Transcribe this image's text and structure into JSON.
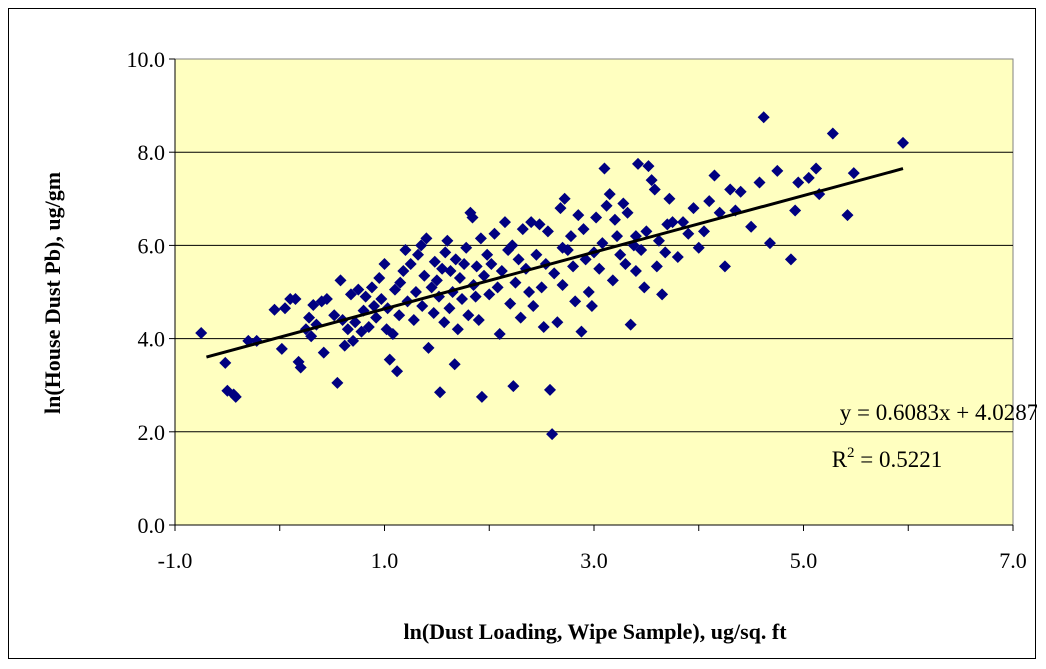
{
  "chart_data": {
    "type": "scatter",
    "xlabel": "ln(Dust Loading, Wipe Sample), ug/sq. ft",
    "ylabel": "ln(House Dust Pb), ug/gm",
    "xlim": [
      -1.0,
      7.0
    ],
    "ylim": [
      0.0,
      10.0
    ],
    "x_ticks": [
      "-1.0",
      "1.0",
      "3.0",
      "5.0",
      "7.0"
    ],
    "y_ticks": [
      "0.0",
      "2.0",
      "4.0",
      "6.0",
      "8.0",
      "10.0"
    ],
    "grid": "horizontal major gridlines",
    "legend": "none",
    "colors": {
      "plot_background": "#FFFFC0",
      "marker": "#000080",
      "trendline": "#000000",
      "gridline": "#000000"
    },
    "marker_shape": "diamond",
    "trendline": {
      "type": "linear",
      "slope": 0.6083,
      "intercept": 4.0287,
      "x_range": [
        -0.7,
        5.95
      ],
      "equation_text": "y = 0.6083x + 4.0287",
      "r2_prefix": "R",
      "r2_sup": "2",
      "r2_suffix": " = 0.5221"
    },
    "points": [
      [
        -0.75,
        4.12
      ],
      [
        -0.52,
        3.48
      ],
      [
        -0.5,
        2.88
      ],
      [
        -0.44,
        2.8
      ],
      [
        -0.42,
        2.75
      ],
      [
        -0.3,
        3.95
      ],
      [
        -0.22,
        3.95
      ],
      [
        -0.05,
        4.62
      ],
      [
        0.02,
        3.78
      ],
      [
        0.05,
        4.65
      ],
      [
        0.1,
        4.85
      ],
      [
        0.15,
        4.85
      ],
      [
        0.18,
        3.5
      ],
      [
        0.2,
        3.38
      ],
      [
        0.25,
        4.2
      ],
      [
        0.28,
        4.45
      ],
      [
        0.3,
        4.05
      ],
      [
        0.32,
        4.72
      ],
      [
        0.35,
        4.3
      ],
      [
        0.4,
        4.8
      ],
      [
        0.42,
        3.7
      ],
      [
        0.45,
        4.85
      ],
      [
        0.52,
        4.5
      ],
      [
        0.55,
        3.05
      ],
      [
        0.58,
        5.25
      ],
      [
        0.6,
        4.4
      ],
      [
        0.62,
        3.85
      ],
      [
        0.65,
        4.2
      ],
      [
        0.68,
        4.95
      ],
      [
        0.7,
        3.95
      ],
      [
        0.72,
        4.35
      ],
      [
        0.75,
        5.05
      ],
      [
        0.78,
        4.15
      ],
      [
        0.8,
        4.6
      ],
      [
        0.82,
        4.9
      ],
      [
        0.85,
        4.25
      ],
      [
        0.88,
        5.1
      ],
      [
        0.9,
        4.7
      ],
      [
        0.92,
        4.45
      ],
      [
        0.95,
        5.3
      ],
      [
        0.97,
        4.85
      ],
      [
        1.0,
        5.6
      ],
      [
        1.02,
        4.2
      ],
      [
        1.03,
        4.65
      ],
      [
        1.05,
        3.55
      ],
      [
        1.08,
        4.1
      ],
      [
        1.1,
        5.05
      ],
      [
        1.12,
        3.3
      ],
      [
        1.14,
        4.5
      ],
      [
        1.15,
        5.2
      ],
      [
        1.18,
        5.45
      ],
      [
        1.2,
        5.9
      ],
      [
        1.22,
        4.8
      ],
      [
        1.25,
        5.6
      ],
      [
        1.28,
        4.4
      ],
      [
        1.3,
        5.0
      ],
      [
        1.32,
        5.8
      ],
      [
        1.35,
        6.0
      ],
      [
        1.36,
        4.7
      ],
      [
        1.38,
        5.35
      ],
      [
        1.4,
        6.15
      ],
      [
        1.42,
        3.8
      ],
      [
        1.45,
        5.1
      ],
      [
        1.47,
        4.55
      ],
      [
        1.48,
        5.65
      ],
      [
        1.5,
        5.25
      ],
      [
        1.52,
        4.9
      ],
      [
        1.53,
        2.85
      ],
      [
        1.55,
        5.5
      ],
      [
        1.57,
        4.35
      ],
      [
        1.58,
        5.85
      ],
      [
        1.6,
        6.1
      ],
      [
        1.62,
        4.65
      ],
      [
        1.63,
        5.45
      ],
      [
        1.65,
        5.0
      ],
      [
        1.67,
        3.45
      ],
      [
        1.68,
        5.7
      ],
      [
        1.7,
        4.2
      ],
      [
        1.72,
        5.3
      ],
      [
        1.74,
        4.85
      ],
      [
        1.76,
        5.6
      ],
      [
        1.78,
        5.95
      ],
      [
        1.8,
        4.5
      ],
      [
        1.82,
        6.7
      ],
      [
        1.84,
        6.6
      ],
      [
        1.85,
        5.15
      ],
      [
        1.87,
        4.9
      ],
      [
        1.88,
        5.55
      ],
      [
        1.9,
        4.4
      ],
      [
        1.92,
        6.15
      ],
      [
        1.93,
        2.75
      ],
      [
        1.95,
        5.35
      ],
      [
        1.98,
        5.8
      ],
      [
        2.0,
        4.95
      ],
      [
        2.02,
        5.6
      ],
      [
        2.05,
        6.25
      ],
      [
        2.08,
        5.1
      ],
      [
        2.1,
        4.1
      ],
      [
        2.12,
        5.45
      ],
      [
        2.15,
        6.5
      ],
      [
        2.18,
        5.9
      ],
      [
        2.2,
        4.75
      ],
      [
        2.22,
        6.0
      ],
      [
        2.23,
        2.98
      ],
      [
        2.25,
        5.2
      ],
      [
        2.28,
        5.7
      ],
      [
        2.3,
        4.45
      ],
      [
        2.32,
        6.35
      ],
      [
        2.35,
        5.5
      ],
      [
        2.38,
        5.0
      ],
      [
        2.4,
        6.5
      ],
      [
        2.42,
        4.7
      ],
      [
        2.45,
        5.8
      ],
      [
        2.48,
        6.45
      ],
      [
        2.5,
        5.1
      ],
      [
        2.52,
        4.25
      ],
      [
        2.54,
        5.6
      ],
      [
        2.56,
        6.3
      ],
      [
        2.58,
        2.9
      ],
      [
        2.6,
        1.95
      ],
      [
        2.62,
        5.4
      ],
      [
        2.65,
        4.35
      ],
      [
        2.68,
        6.8
      ],
      [
        2.7,
        5.15
      ],
      [
        2.72,
        7.0
      ],
      [
        2.75,
        5.9
      ],
      [
        2.78,
        6.2
      ],
      [
        2.8,
        5.55
      ],
      [
        2.82,
        4.8
      ],
      [
        2.85,
        6.65
      ],
      [
        2.88,
        4.15
      ],
      [
        2.9,
        6.35
      ],
      [
        2.92,
        5.7
      ],
      [
        2.95,
        5.0
      ],
      [
        2.98,
        4.7
      ],
      [
        3.0,
        5.85
      ],
      [
        3.02,
        6.6
      ],
      [
        3.05,
        5.5
      ],
      [
        3.08,
        6.05
      ],
      [
        3.1,
        7.65
      ],
      [
        3.12,
        6.85
      ],
      [
        3.15,
        7.1
      ],
      [
        3.18,
        5.25
      ],
      [
        3.2,
        6.55
      ],
      [
        3.22,
        6.2
      ],
      [
        3.25,
        5.8
      ],
      [
        3.28,
        6.9
      ],
      [
        3.3,
        5.6
      ],
      [
        3.32,
        6.7
      ],
      [
        3.35,
        4.3
      ],
      [
        3.38,
        6.0
      ],
      [
        3.4,
        5.45
      ],
      [
        3.42,
        7.75
      ],
      [
        3.45,
        5.9
      ],
      [
        3.48,
        5.1
      ],
      [
        3.5,
        6.3
      ],
      [
        3.52,
        7.7
      ],
      [
        3.55,
        7.4
      ],
      [
        3.58,
        7.2
      ],
      [
        3.6,
        5.55
      ],
      [
        3.62,
        6.1
      ],
      [
        3.65,
        4.95
      ],
      [
        3.68,
        5.85
      ],
      [
        3.7,
        6.45
      ],
      [
        3.72,
        7.0
      ],
      [
        3.75,
        6.5
      ],
      [
        3.8,
        5.75
      ],
      [
        3.85,
        6.5
      ],
      [
        3.9,
        6.25
      ],
      [
        3.95,
        6.8
      ],
      [
        4.0,
        5.95
      ],
      [
        4.05,
        6.3
      ],
      [
        4.1,
        6.95
      ],
      [
        4.15,
        7.5
      ],
      [
        4.2,
        6.7
      ],
      [
        4.25,
        5.55
      ],
      [
        4.3,
        7.2
      ],
      [
        4.35,
        6.75
      ],
      [
        4.4,
        7.15
      ],
      [
        4.5,
        6.4
      ],
      [
        4.58,
        7.35
      ],
      [
        4.62,
        8.75
      ],
      [
        4.68,
        6.05
      ],
      [
        4.75,
        7.6
      ],
      [
        4.88,
        5.7
      ],
      [
        4.92,
        6.75
      ],
      [
        4.95,
        7.35
      ],
      [
        5.05,
        7.45
      ],
      [
        5.12,
        7.65
      ],
      [
        5.15,
        7.1
      ],
      [
        5.28,
        8.4
      ],
      [
        5.42,
        6.65
      ],
      [
        5.48,
        7.55
      ],
      [
        5.95,
        8.2
      ],
      [
        3.4,
        6.2
      ],
      [
        2.7,
        5.95
      ]
    ]
  }
}
